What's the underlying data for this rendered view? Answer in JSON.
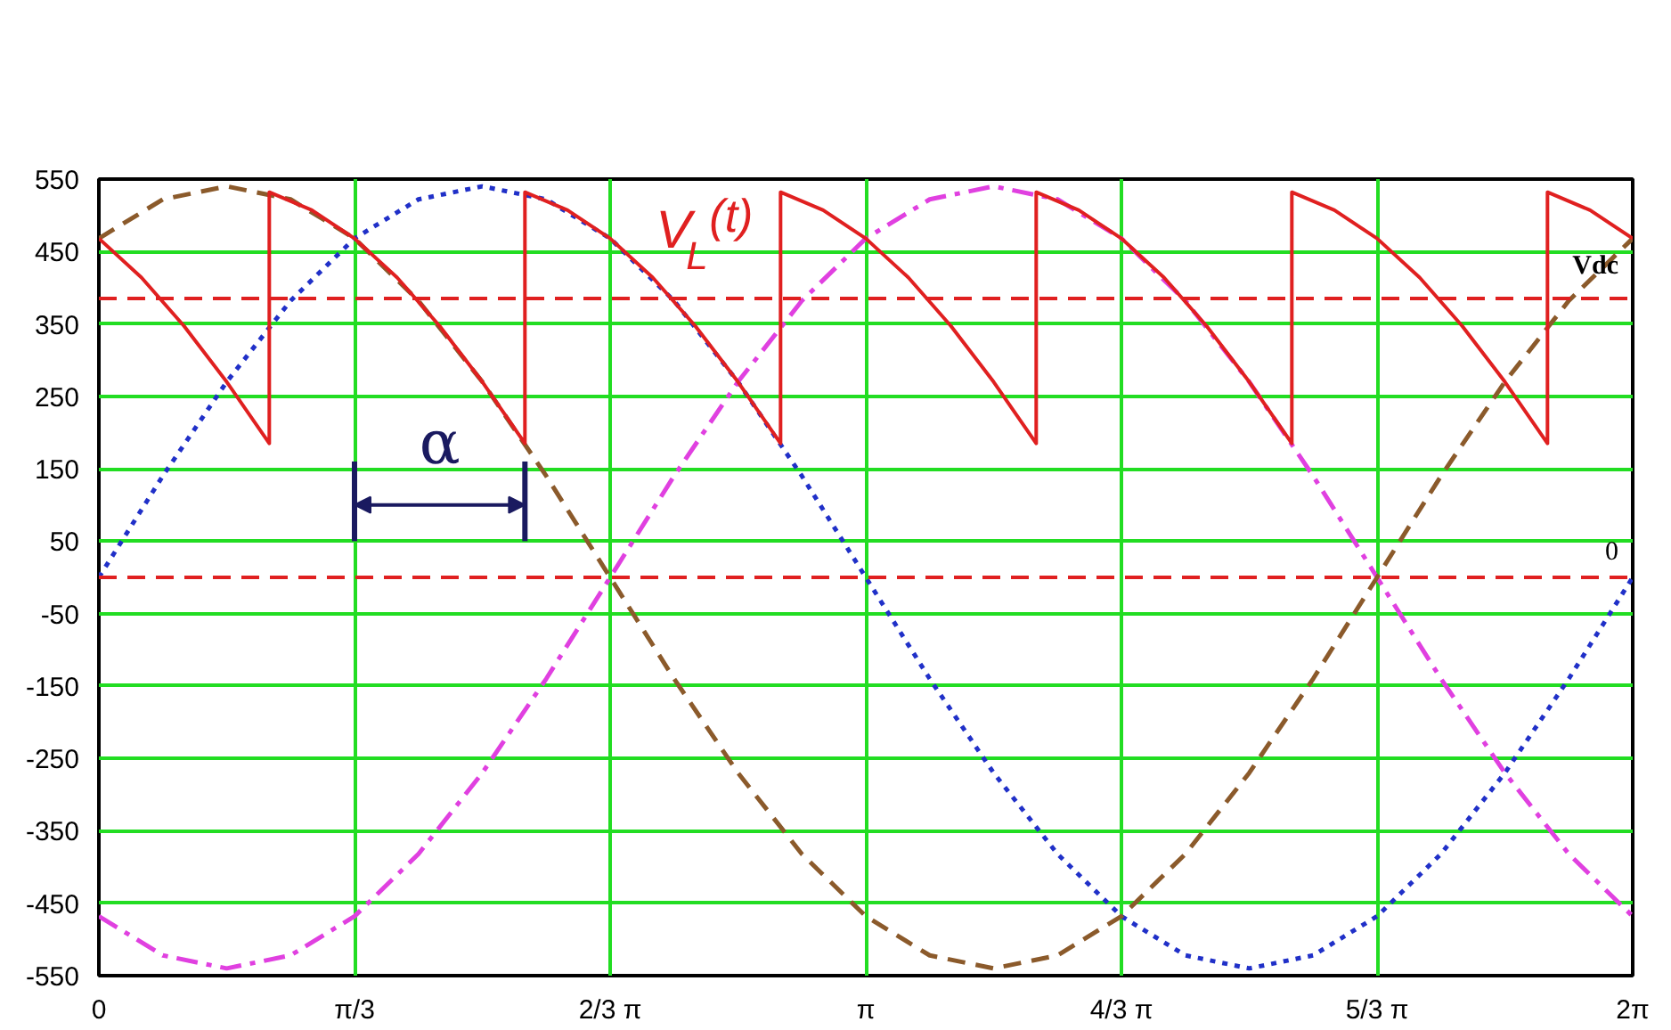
{
  "chart_data": {
    "type": "line",
    "xlim": [
      0,
      6.2832
    ],
    "ylim": [
      -550,
      550
    ],
    "xticks": [
      0,
      {
        "value": 1.0472,
        "label": "π/3"
      },
      {
        "value": 2.0944,
        "label": "2/3 π"
      },
      {
        "value": 3.1416,
        "label": "π"
      },
      {
        "value": 4.1888,
        "label": "4/3 π"
      },
      {
        "value": 5.236,
        "label": "5/3 π"
      },
      {
        "value": 6.2832,
        "label": "2π"
      }
    ],
    "yticks": [
      550,
      450,
      350,
      250,
      150,
      50,
      -50,
      -150,
      -250,
      -350,
      -450,
      -550
    ],
    "grid": true,
    "series": [
      {
        "color": "#2030c8",
        "line_style": "dotted",
        "x": [
          0,
          0.2618,
          0.5236,
          0.7854,
          1.0472,
          1.309,
          1.5708,
          1.8326,
          2.0944,
          2.3562,
          2.618,
          2.8798,
          3.1416,
          3.4034,
          3.6652,
          3.927,
          4.1888,
          4.4506,
          4.7124,
          4.9742,
          5.236,
          5.4978,
          5.7596,
          6.0214,
          6.2832
        ],
        "values": [
          0,
          140,
          270,
          382,
          468,
          522,
          540,
          522,
          468,
          382,
          270,
          140,
          0,
          -140,
          -270,
          -382,
          -468,
          -522,
          -540,
          -522,
          -468,
          -382,
          -270,
          -140,
          0
        ]
      },
      {
        "color": "#e040e0",
        "line_style": "dashdot",
        "x": [
          0,
          0.2618,
          0.5236,
          0.7854,
          1.0472,
          1.309,
          1.5708,
          1.8326,
          2.0944,
          2.3562,
          2.618,
          2.8798,
          3.1416,
          3.4034,
          3.6652,
          3.927,
          4.1888,
          4.4506,
          4.7124,
          4.9742,
          5.236,
          5.4978,
          5.7596,
          6.0214,
          6.2832
        ],
        "values": [
          -468,
          -522,
          -540,
          -522,
          -468,
          -382,
          -270,
          -140,
          0,
          140,
          270,
          382,
          468,
          522,
          540,
          522,
          468,
          382,
          270,
          140,
          0,
          -140,
          -270,
          -382,
          -468
        ]
      },
      {
        "color": "#8b5a2b",
        "line_style": "dashed",
        "x": [
          0,
          0.2618,
          0.5236,
          0.7854,
          1.0472,
          1.309,
          1.5708,
          1.8326,
          2.0944,
          2.3562,
          2.618,
          2.8798,
          3.1416,
          3.4034,
          3.6652,
          3.927,
          4.1888,
          4.4506,
          4.7124,
          4.9742,
          5.236,
          5.4978,
          5.7596,
          6.0214,
          6.2832
        ],
        "values": [
          468,
          522,
          540,
          522,
          468,
          382,
          270,
          140,
          0,
          -140,
          -270,
          -382,
          -468,
          -522,
          -540,
          -522,
          -468,
          -382,
          -270,
          -140,
          0,
          140,
          270,
          382,
          468
        ]
      },
      {
        "name": "V$_{L}$(t)",
        "color": "#e02020",
        "line_style": "solid",
        "x": [
          0,
          0.1745,
          0.3491,
          0.5236,
          0.6981,
          0.6981,
          0.8727,
          1.0472,
          1.2217,
          1.3963,
          1.5708,
          1.7453,
          1.7453,
          1.9199,
          2.0944,
          2.2689,
          2.4435,
          2.618,
          2.7925,
          2.7925,
          2.9671,
          3.1416,
          3.3161,
          3.4907,
          3.6652,
          3.8397,
          3.8397,
          4.0143,
          4.1888,
          4.3633,
          4.5379,
          4.7124,
          4.8869,
          4.8869,
          5.0615,
          5.236,
          5.4105,
          5.5851,
          5.7596,
          5.9341,
          5.9341,
          6.1087,
          6.2832
        ],
        "values": [
          468,
          414,
          347,
          270,
          185,
          532,
          507,
          468,
          414,
          347,
          270,
          185,
          532,
          507,
          468,
          414,
          347,
          270,
          185,
          532,
          507,
          468,
          414,
          347,
          270,
          185,
          532,
          507,
          468,
          414,
          347,
          270,
          185,
          532,
          507,
          468,
          414,
          347,
          270,
          185,
          532,
          507,
          468
        ]
      }
    ],
    "ref_lines": [
      {
        "axis": "y",
        "value": 385,
        "label": "Vdc",
        "color": "#e02020",
        "line_style": "dashed"
      },
      {
        "axis": "y",
        "value": 0,
        "label": "0",
        "color": "#e02020",
        "line_style": "dashed"
      }
    ],
    "annotations": [
      "α"
    ]
  }
}
